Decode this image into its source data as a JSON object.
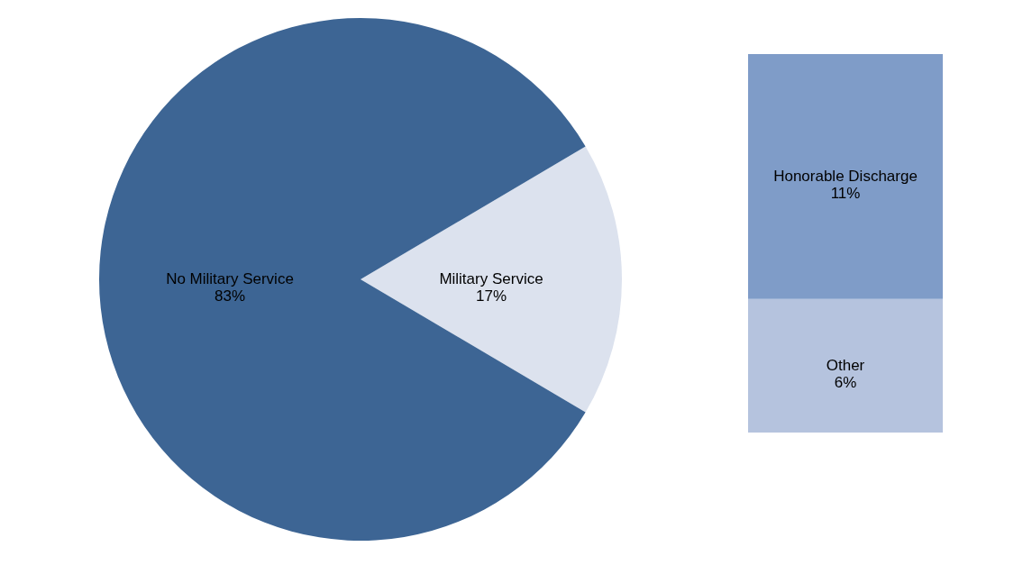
{
  "chart_data": [
    {
      "type": "pie",
      "categories": [
        "No Military Service",
        "Military Service"
      ],
      "values": [
        83,
        17
      ],
      "colors": [
        "#3d6594",
        "#dce2ee"
      ],
      "value_labels": [
        "83%",
        "17%"
      ]
    },
    {
      "type": "bar",
      "stacked": true,
      "categories": [
        null
      ],
      "series": [
        {
          "name": "Other",
          "color": "#b5c3de",
          "values": [
            6
          ],
          "value_labels": [
            "6%"
          ]
        },
        {
          "name": "Honorable Discharge",
          "color": "#7f9cc8",
          "values": [
            11
          ],
          "value_labels": [
            "11%"
          ]
        }
      ]
    }
  ]
}
